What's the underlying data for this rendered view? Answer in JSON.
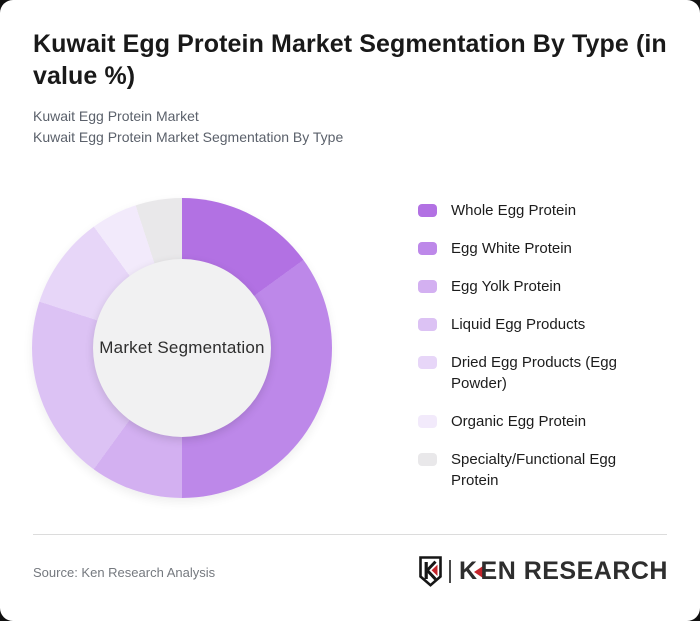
{
  "header": {
    "title": "Kuwait Egg Protein Market Segmentation By Type (in value %)",
    "subtitle_lines": [
      "Kuwait Egg Protein Market",
      "Kuwait Egg Protein Market Segmentation By Type"
    ]
  },
  "chart_data": {
    "type": "pie",
    "subtype": "donut",
    "title": "Kuwait Egg Protein Market Segmentation By Type (in value %)",
    "center_label": "Market Segmentation",
    "unit": "value %",
    "legend_position": "right",
    "start_angle_deg": 0,
    "direction": "clockwise",
    "categories": [
      "Whole Egg Protein",
      "Egg White Protein",
      "Egg Yolk Protein",
      "Liquid Egg Products",
      "Dried Egg Products (Egg Powder)",
      "Organic Egg Protein",
      "Specialty/Functional Egg Protein"
    ],
    "values": [
      15,
      35,
      10,
      20,
      10,
      5,
      5
    ],
    "colors": [
      "#b271e3",
      "#bd88e9",
      "#d3b0f1",
      "#dcc2f4",
      "#e7d6f8",
      "#f2eafb",
      "#e9e8ea"
    ],
    "hole_color": "#f1f1f2"
  },
  "footer": {
    "source": "Source: Ken Research Analysis",
    "logo": {
      "badge_letter": "K",
      "wordmark_k": "K",
      "wordmark_rest": "EN RESEARCH",
      "brand_red": "#c4242b",
      "brand_dark": "#2e2e2e"
    }
  }
}
